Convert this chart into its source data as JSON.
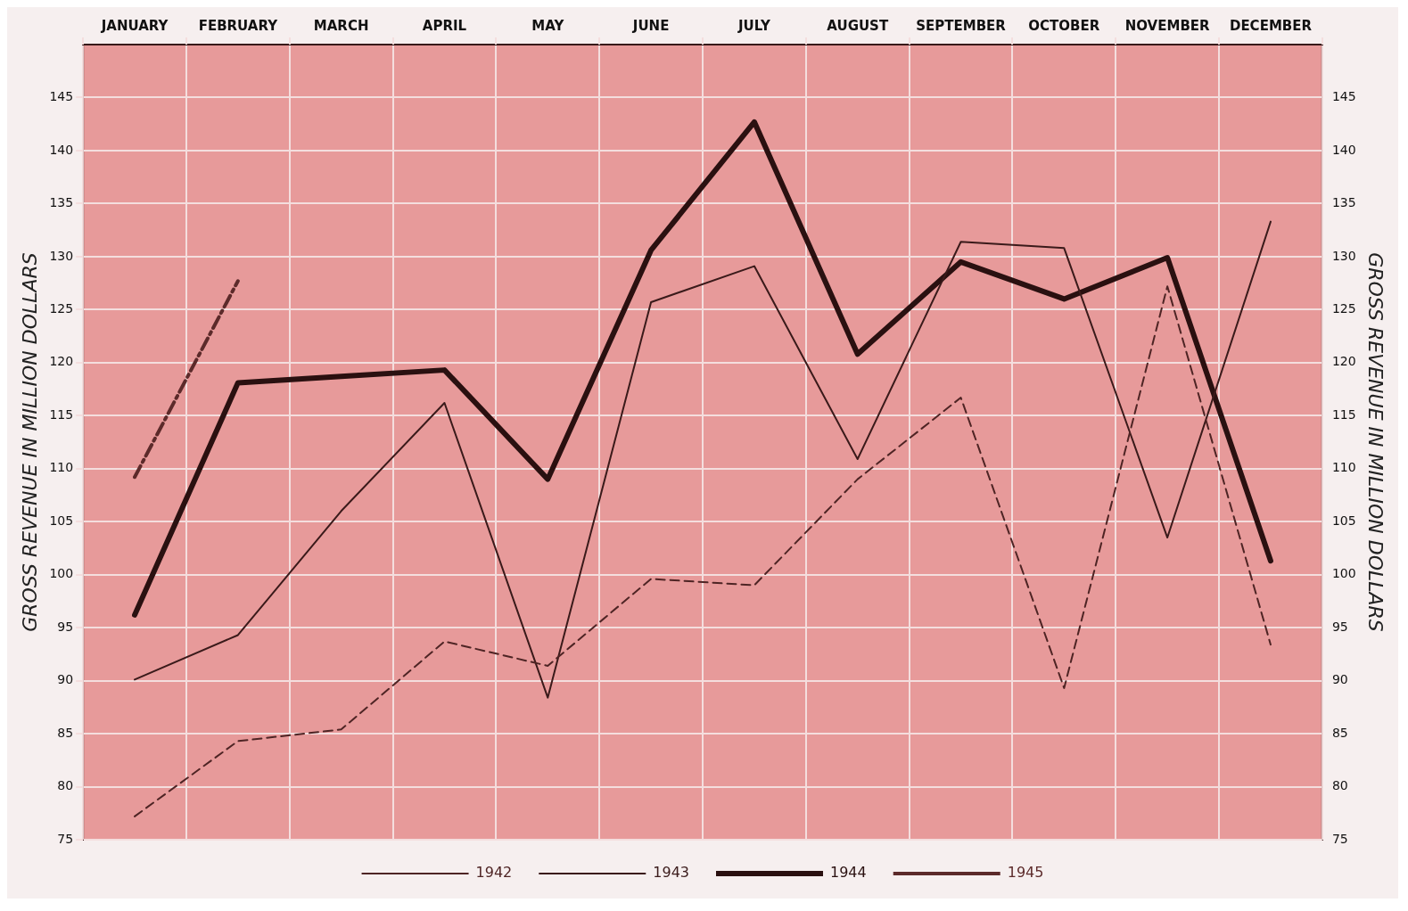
{
  "chart_data": {
    "type": "line",
    "ylabel": "GROSS REVENUE IN MILLION DOLLARS",
    "y2label": "GROSS REVENUE IN MILLION DOLLARS",
    "categories": [
      "JANUARY",
      "FEBRUARY",
      "MARCH",
      "APRIL",
      "MAY",
      "JUNE",
      "JULY",
      "AUGUST",
      "SEPTEMBER",
      "OCTOBER",
      "NOVEMBER",
      "DECEMBER"
    ],
    "series": [
      {
        "name": "1942",
        "color": "#4e2424",
        "line_style": "dashed",
        "values": [
          77.2,
          84.3,
          85.4,
          93.7,
          91.4,
          99.6,
          99.0,
          109.0,
          116.7,
          89.3,
          127.2,
          93.4
        ]
      },
      {
        "name": "1943",
        "color": "#3a1a1a",
        "line_style": "solid",
        "values": [
          90.1,
          94.3,
          106.0,
          116.2,
          88.4,
          125.7,
          129.1,
          110.9,
          131.4,
          130.8,
          103.5,
          133.3
        ]
      },
      {
        "name": "1944",
        "color": "#2a1010",
        "line_style": "solid",
        "values": [
          96.2,
          118.1,
          118.7,
          119.3,
          109.0,
          130.6,
          142.7,
          120.8,
          129.5,
          126.0,
          129.9,
          101.3
        ]
      },
      {
        "name": "1945",
        "color": "#5c2a2a",
        "line_style": "dashed",
        "values": [
          109.2,
          127.7,
          null,
          null,
          null,
          null,
          null,
          null,
          null,
          null,
          null,
          null
        ]
      }
    ],
    "ylim": [
      75,
      150
    ],
    "yticks": [
      75,
      80,
      85,
      90,
      95,
      100,
      105,
      110,
      115,
      120,
      125,
      130,
      135,
      140,
      145
    ],
    "y2lim": [
      75,
      150
    ],
    "y2ticks": [
      75,
      80,
      85,
      90,
      95,
      100,
      105,
      110,
      115,
      120,
      125,
      130,
      135,
      140,
      145
    ],
    "grid": true,
    "legend": "bottom",
    "marker": "none"
  }
}
